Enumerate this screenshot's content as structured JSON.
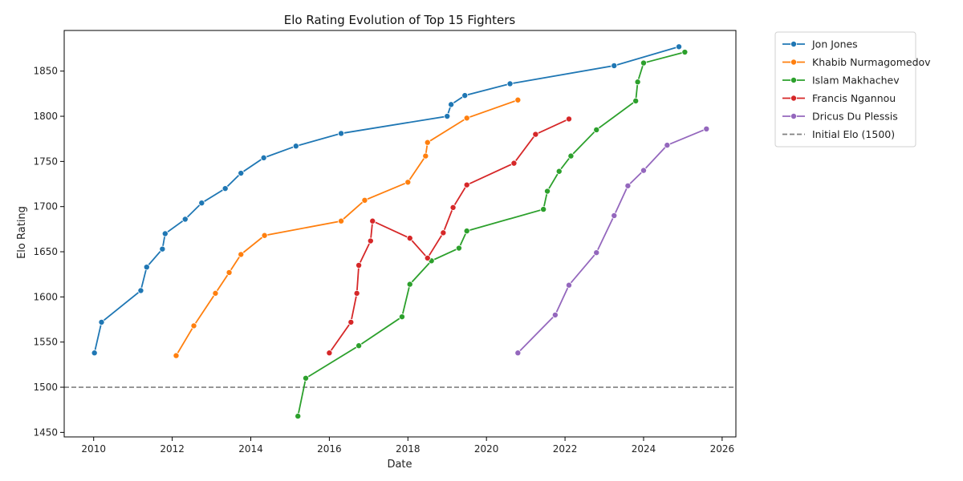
{
  "chart_data": {
    "type": "line",
    "title": "Elo Rating Evolution of Top 15 Fighters",
    "xlabel": "Date",
    "ylabel": "Elo Rating",
    "xlim": [
      2009.25,
      2026.35
    ],
    "ylim": [
      1445,
      1895
    ],
    "x_ticks": [
      2010,
      2012,
      2014,
      2016,
      2018,
      2020,
      2022,
      2024,
      2026
    ],
    "y_ticks": [
      1450,
      1500,
      1550,
      1600,
      1650,
      1700,
      1750,
      1800,
      1850
    ],
    "grid": false,
    "legend_position": "outside-top-right",
    "reference_line": {
      "y": 1500,
      "label": "Initial Elo (1500)",
      "color": "#808080"
    },
    "series": [
      {
        "name": "Jon Jones",
        "color": "#1f77b4",
        "points": [
          [
            2010.02,
            1538
          ],
          [
            2010.2,
            1572
          ],
          [
            2011.2,
            1607
          ],
          [
            2011.35,
            1633
          ],
          [
            2011.75,
            1653
          ],
          [
            2011.82,
            1670
          ],
          [
            2012.33,
            1686
          ],
          [
            2012.75,
            1704
          ],
          [
            2013.35,
            1720
          ],
          [
            2013.75,
            1737
          ],
          [
            2014.33,
            1754
          ],
          [
            2015.15,
            1767
          ],
          [
            2016.3,
            1781
          ],
          [
            2019.0,
            1800
          ],
          [
            2019.1,
            1813
          ],
          [
            2019.45,
            1823
          ],
          [
            2020.6,
            1836
          ],
          [
            2023.25,
            1856
          ],
          [
            2024.9,
            1877
          ]
        ]
      },
      {
        "name": "Khabib Nurmagomedov",
        "color": "#ff7f0e",
        "points": [
          [
            2012.1,
            1535
          ],
          [
            2012.55,
            1568
          ],
          [
            2013.1,
            1604
          ],
          [
            2013.45,
            1627
          ],
          [
            2013.75,
            1647
          ],
          [
            2014.35,
            1668
          ],
          [
            2016.3,
            1684
          ],
          [
            2016.9,
            1707
          ],
          [
            2018.0,
            1727
          ],
          [
            2018.45,
            1756
          ],
          [
            2018.5,
            1771
          ],
          [
            2019.5,
            1798
          ],
          [
            2020.8,
            1818
          ]
        ]
      },
      {
        "name": "Islam Makhachev",
        "color": "#2ca02c",
        "points": [
          [
            2015.2,
            1468
          ],
          [
            2015.4,
            1510
          ],
          [
            2016.75,
            1546
          ],
          [
            2017.85,
            1578
          ],
          [
            2018.05,
            1614
          ],
          [
            2018.6,
            1640
          ],
          [
            2019.3,
            1654
          ],
          [
            2019.5,
            1673
          ],
          [
            2021.45,
            1697
          ],
          [
            2021.55,
            1717
          ],
          [
            2021.85,
            1739
          ],
          [
            2022.15,
            1756
          ],
          [
            2022.8,
            1785
          ],
          [
            2023.8,
            1817
          ],
          [
            2023.85,
            1838
          ],
          [
            2024.0,
            1859
          ],
          [
            2025.05,
            1871
          ]
        ]
      },
      {
        "name": "Francis Ngannou",
        "color": "#d62728",
        "points": [
          [
            2016.0,
            1538
          ],
          [
            2016.55,
            1572
          ],
          [
            2016.7,
            1604
          ],
          [
            2016.75,
            1635
          ],
          [
            2017.05,
            1662
          ],
          [
            2017.1,
            1684
          ],
          [
            2018.05,
            1665
          ],
          [
            2018.5,
            1643
          ],
          [
            2018.9,
            1671
          ],
          [
            2019.15,
            1699
          ],
          [
            2019.5,
            1724
          ],
          [
            2020.7,
            1748
          ],
          [
            2021.25,
            1780
          ],
          [
            2022.1,
            1797
          ]
        ]
      },
      {
        "name": "Dricus Du Plessis",
        "color": "#9467bd",
        "points": [
          [
            2020.8,
            1538
          ],
          [
            2021.75,
            1580
          ],
          [
            2022.1,
            1613
          ],
          [
            2022.8,
            1649
          ],
          [
            2023.25,
            1690
          ],
          [
            2023.6,
            1723
          ],
          [
            2024.0,
            1740
          ],
          [
            2024.6,
            1768
          ],
          [
            2025.6,
            1786
          ]
        ]
      }
    ]
  }
}
